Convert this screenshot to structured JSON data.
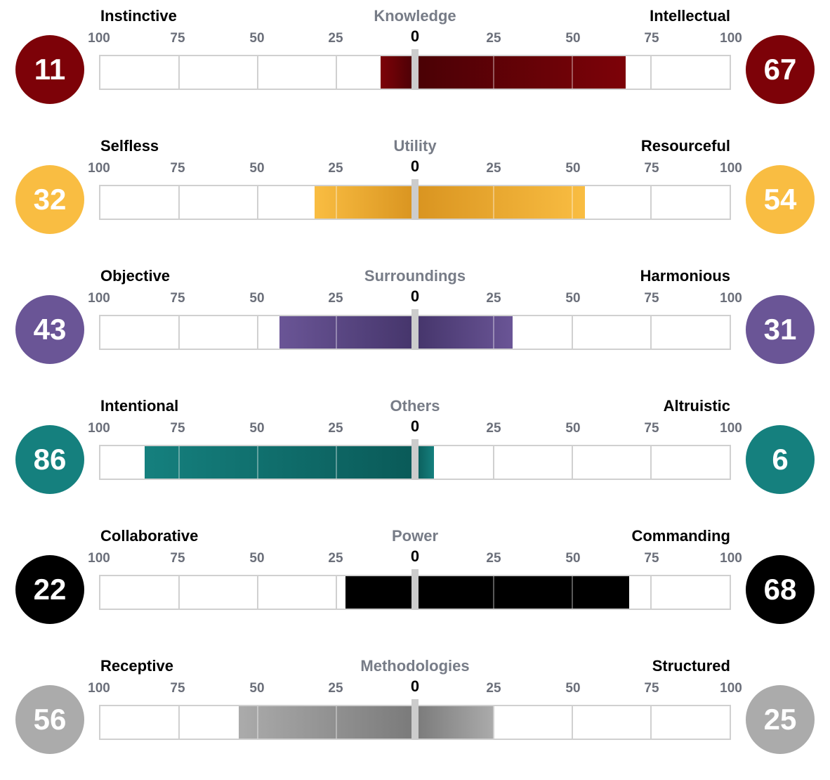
{
  "chart_data": {
    "type": "bar",
    "axis_ticks": [
      "100",
      "75",
      "50",
      "25",
      "0",
      "25",
      "50",
      "75",
      "100"
    ],
    "xlim": [
      -100,
      100
    ],
    "grid": true,
    "rows": [
      {
        "title": "Knowledge",
        "left_label": "Instinctive",
        "right_label": "Intellectual",
        "left_value": 11,
        "right_value": 67,
        "color": "#7d0208",
        "color_dark": "#4a0105"
      },
      {
        "title": "Utility",
        "left_label": "Selfless",
        "right_label": "Resourceful",
        "left_value": 32,
        "right_value": 54,
        "color": "#f9bd42",
        "color_dark": "#d99420"
      },
      {
        "title": "Surroundings",
        "left_label": "Objective",
        "right_label": "Harmonious",
        "left_value": 43,
        "right_value": 31,
        "color": "#6a5596",
        "color_dark": "#45356b"
      },
      {
        "title": "Others",
        "left_label": "Intentional",
        "right_label": "Altruistic",
        "left_value": 86,
        "right_value": 6,
        "color": "#15807e",
        "color_dark": "#0a5a58"
      },
      {
        "title": "Power",
        "left_label": "Collaborative",
        "right_label": "Commanding",
        "left_value": 22,
        "right_value": 68,
        "color": "#000000",
        "color_dark": "#000000"
      },
      {
        "title": "Methodologies",
        "left_label": "Receptive",
        "right_label": "Structured",
        "left_value": 56,
        "right_value": 25,
        "color": "#ababab",
        "color_dark": "#7a7a7a"
      }
    ]
  }
}
